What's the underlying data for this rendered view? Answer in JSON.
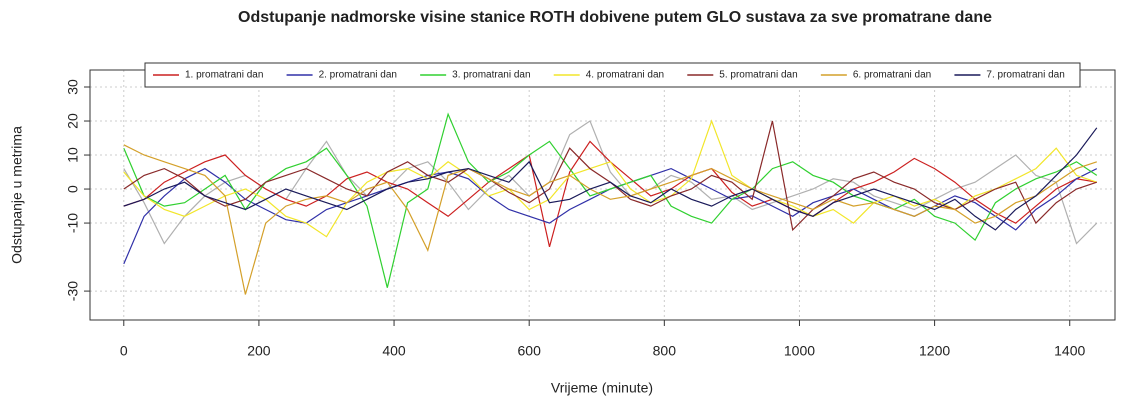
{
  "chart_data": {
    "type": "line",
    "title": "Odstupanje nadmorske visine stanice ROTH dobivene putem GLO sustava za sve promatrane dane",
    "xlabel": "Vrijeme (minute)",
    "ylabel": "Odstupanje u metrima",
    "xlim": [
      -50,
      1467
    ],
    "ylim": [
      -38.5,
      35
    ],
    "xticks": [
      0,
      200,
      400,
      600,
      800,
      1000,
      1200,
      1400
    ],
    "yticks": [
      -30,
      -10,
      0,
      10,
      20,
      30
    ],
    "grid": true,
    "legend": "top",
    "x": [
      0,
      30,
      60,
      90,
      120,
      150,
      180,
      210,
      240,
      270,
      300,
      330,
      360,
      390,
      420,
      450,
      480,
      510,
      540,
      570,
      600,
      630,
      660,
      690,
      720,
      750,
      780,
      810,
      840,
      870,
      900,
      930,
      960,
      990,
      1020,
      1050,
      1080,
      1110,
      1140,
      1170,
      1200,
      1230,
      1260,
      1290,
      1320,
      1350,
      1380,
      1410,
      1440
    ],
    "series": [
      {
        "color": "#b0b0b0",
        "values": [
          6,
          -4,
          -16,
          -8,
          -2,
          2,
          4,
          0,
          -3,
          6,
          14,
          4,
          -2,
          0,
          6,
          8,
          2,
          -6,
          0,
          4,
          -2,
          2,
          16,
          20,
          5,
          -2,
          0,
          4,
          2,
          -3,
          -2,
          -6,
          -4,
          -2,
          0,
          3,
          2,
          -2,
          -4,
          -6,
          -3,
          0,
          2,
          6,
          10,
          4,
          2,
          -16,
          -10
        ]
      },
      {
        "name": "1. promatrani dan",
        "color": "#cc2020",
        "values": [
          -5,
          -3,
          2,
          5,
          8,
          10,
          4,
          0,
          -3,
          -5,
          -2,
          3,
          5,
          2,
          0,
          -4,
          -8,
          -3,
          2,
          6,
          10,
          -17,
          5,
          14,
          8,
          3,
          -2,
          0,
          4,
          6,
          -1,
          -5,
          -3,
          -6,
          -8,
          -4,
          0,
          2,
          5,
          9,
          6,
          2,
          -3,
          -7,
          -10,
          -5,
          0,
          3,
          2
        ]
      },
      {
        "name": "2. promatrani dan",
        "color": "#3030a8",
        "values": [
          -22,
          -8,
          -2,
          3,
          6,
          2,
          -3,
          -6,
          -9,
          -10,
          -6,
          -4,
          -2,
          0,
          2,
          4,
          5,
          3,
          -2,
          -6,
          -8,
          -10,
          -6,
          -3,
          0,
          2,
          4,
          6,
          3,
          0,
          -3,
          -2,
          -5,
          -8,
          -4,
          -2,
          0,
          -3,
          -6,
          -8,
          -5,
          -2,
          -4,
          -8,
          -12,
          -6,
          -2,
          3,
          6
        ]
      },
      {
        "name": "3. promatrani dan",
        "color": "#30d030",
        "values": [
          12,
          -2,
          -5,
          -4,
          0,
          4,
          -6,
          2,
          6,
          8,
          12,
          4,
          -5,
          -29,
          -4,
          0,
          22,
          8,
          2,
          5,
          10,
          14,
          6,
          -2,
          0,
          2,
          4,
          -5,
          -8,
          -10,
          -3,
          0,
          6,
          8,
          4,
          2,
          -2,
          -4,
          -6,
          -3,
          -8,
          -10,
          -15,
          -4,
          0,
          3,
          5,
          8,
          4
        ]
      },
      {
        "name": "4. promatrani dan",
        "color": "#f2e62a",
        "values": [
          5,
          -2,
          -6,
          -8,
          -5,
          -2,
          0,
          -3,
          -8,
          -10,
          -14,
          -4,
          2,
          5,
          6,
          3,
          8,
          4,
          -2,
          0,
          -6,
          -3,
          4,
          6,
          8,
          0,
          -4,
          -2,
          3,
          20,
          4,
          0,
          -3,
          -5,
          -8,
          -6,
          -10,
          -4,
          -2,
          -5,
          -3,
          -6,
          -2,
          0,
          3,
          6,
          12,
          4,
          2
        ]
      },
      {
        "name": "5. promatrani dan",
        "color": "#8a2a2a",
        "values": [
          0,
          4,
          6,
          3,
          -2,
          -5,
          -3,
          2,
          4,
          6,
          3,
          0,
          -2,
          5,
          8,
          4,
          2,
          6,
          3,
          -1,
          -4,
          0,
          12,
          6,
          2,
          -3,
          -5,
          -2,
          0,
          4,
          2,
          -3,
          20,
          -12,
          -6,
          -2,
          3,
          5,
          2,
          0,
          -4,
          -6,
          -3,
          0,
          2,
          -10,
          -4,
          0,
          2
        ]
      },
      {
        "name": "6. promatrani dan",
        "color": "#d4a02a",
        "values": [
          13,
          10,
          8,
          6,
          4,
          -2,
          -31,
          -10,
          -5,
          -3,
          -2,
          -4,
          0,
          2,
          -6,
          -18,
          4,
          6,
          3,
          0,
          -2,
          2,
          4,
          0,
          -3,
          -2,
          0,
          2,
          4,
          6,
          3,
          0,
          -2,
          -4,
          -6,
          -3,
          -5,
          -4,
          -6,
          -8,
          -5,
          -6,
          -10,
          -8,
          -4,
          -2,
          2,
          6,
          8
        ]
      },
      {
        "name": "7. promatrani dan",
        "color": "#1a1a5a",
        "values": [
          -5,
          -3,
          0,
          2,
          -2,
          -4,
          -6,
          -3,
          0,
          -2,
          -4,
          -6,
          -3,
          0,
          2,
          3,
          5,
          6,
          4,
          2,
          8,
          -4,
          -3,
          0,
          2,
          -2,
          -4,
          0,
          -3,
          -5,
          -2,
          0,
          -3,
          -6,
          -8,
          -4,
          -2,
          0,
          -2,
          -4,
          -6,
          -3,
          -8,
          -12,
          -6,
          -2,
          4,
          10,
          18
        ]
      }
    ]
  }
}
